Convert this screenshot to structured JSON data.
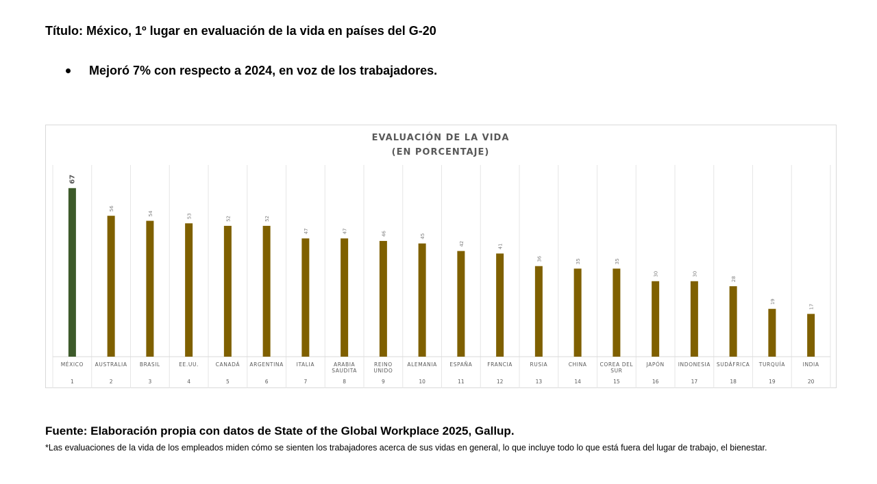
{
  "header": {
    "title": "Título: México, 1º lugar en evaluación de la vida en países del G-20",
    "bullet": "Mejoró 7% con respecto a 2024, en voz de los trabajadores."
  },
  "chart_data": {
    "type": "bar",
    "title": "EVALUACIÓN DE LA VIDA",
    "subtitle": "(EN PORCENTAJE)",
    "categories": [
      "MÉXICO",
      "AUSTRALIA",
      "BRASIL",
      "EE.UU.",
      "CANADÁ",
      "ARGENTINA",
      "ITALIA",
      "ARABIA SAUDITA",
      "REINO UNIDO",
      "ALEMANIA",
      "ESPAÑA",
      "FRANCIA",
      "RUSIA",
      "CHINA",
      "COREA DEL SUR",
      "JAPÓN",
      "INDONESIA",
      "SUDÁFRICA",
      "TURQUÍA",
      "INDIA"
    ],
    "ranks": [
      "1",
      "2",
      "3",
      "4",
      "5",
      "6",
      "7",
      "8",
      "9",
      "10",
      "11",
      "12",
      "13",
      "14",
      "15",
      "16",
      "17",
      "18",
      "19",
      "20"
    ],
    "values": [
      67,
      56,
      54,
      53,
      52,
      52,
      47,
      47,
      46,
      45,
      42,
      41,
      36,
      35,
      35,
      30,
      30,
      28,
      19,
      17
    ],
    "ylim": [
      0,
      80
    ],
    "grid": false,
    "colors": {
      "highlight": "#3d5a2a",
      "default": "#7f6000"
    }
  },
  "footer": {
    "source": "Fuente: Elaboración propia con datos de State of the Global Workplace 2025, Gallup.",
    "note": "*Las evaluaciones de la vida de los empleados miden cómo se sienten los trabajadores acerca de sus vidas en general, lo que incluye todo lo que está fuera del lugar de trabajo, el bienestar."
  }
}
